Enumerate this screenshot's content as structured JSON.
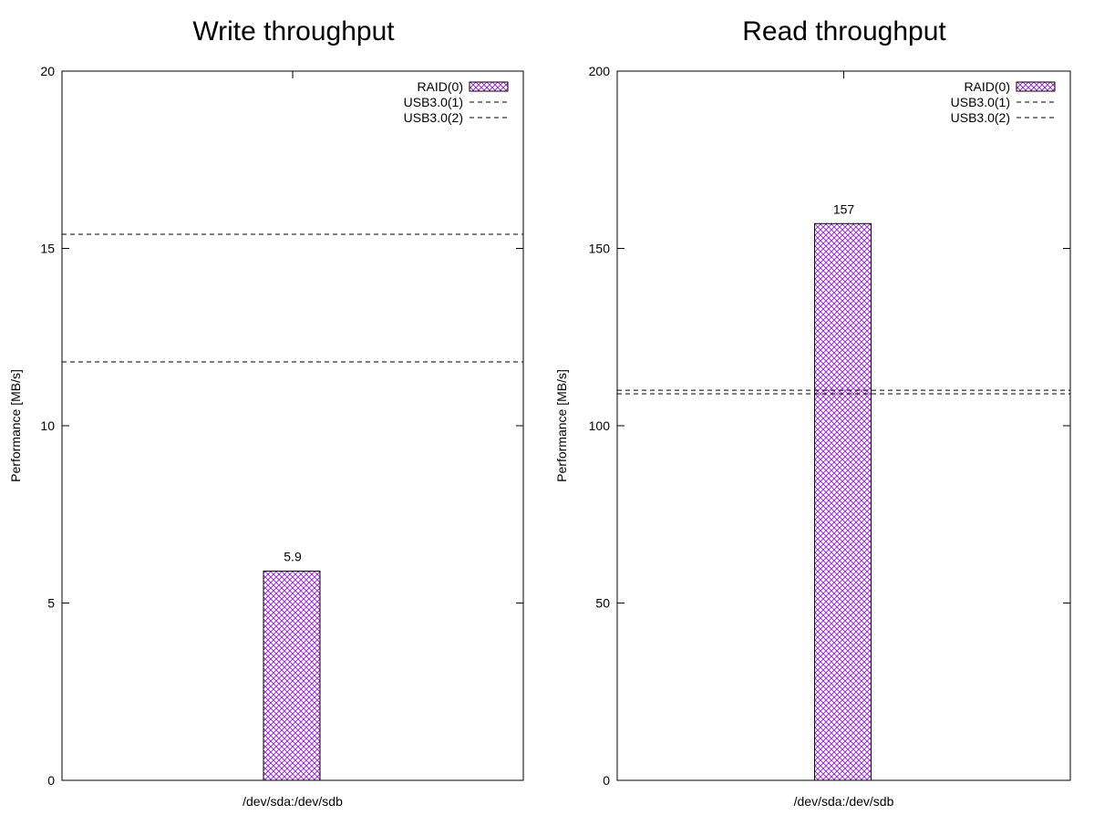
{
  "chart_data": [
    {
      "type": "bar",
      "title": "Write throughput",
      "xlabel": "/dev/sda:/dev/sdb",
      "ylabel": "Performance [MB/s]",
      "categories": [
        "/dev/sda:/dev/sdb"
      ],
      "series": [
        {
          "name": "RAID(0)",
          "values": [
            5.9
          ],
          "style": "crosshatch",
          "color": "#9933cc",
          "data_labels": [
            "5.9"
          ]
        }
      ],
      "reference_lines": [
        {
          "name": "USB3.0(1)",
          "value": 15.4,
          "style": "dashed"
        },
        {
          "name": "USB3.0(2)",
          "value": 11.8,
          "style": "dashed"
        }
      ],
      "ylim": [
        0,
        20
      ],
      "yticks": [
        0,
        5,
        10,
        15,
        20
      ],
      "ytick_labels": [
        "0",
        "5",
        "10",
        "15",
        "20"
      ],
      "grid": false,
      "legend_position": "top-right"
    },
    {
      "type": "bar",
      "title": "Read throughput",
      "xlabel": "/dev/sda:/dev/sdb",
      "ylabel": "Performance [MB/s]",
      "categories": [
        "/dev/sda:/dev/sdb"
      ],
      "series": [
        {
          "name": "RAID(0)",
          "values": [
            157
          ],
          "style": "crosshatch",
          "color": "#9933cc",
          "data_labels": [
            "157"
          ]
        }
      ],
      "reference_lines": [
        {
          "name": "USB3.0(1)",
          "value": 110,
          "style": "dashed"
        },
        {
          "name": "USB3.0(2)",
          "value": 109,
          "style": "dashed"
        }
      ],
      "ylim": [
        0,
        200
      ],
      "yticks": [
        0,
        50,
        100,
        150,
        200
      ],
      "ytick_labels": [
        "0",
        "50",
        "100",
        "150",
        "200"
      ],
      "grid": false,
      "legend_position": "top-right"
    }
  ]
}
